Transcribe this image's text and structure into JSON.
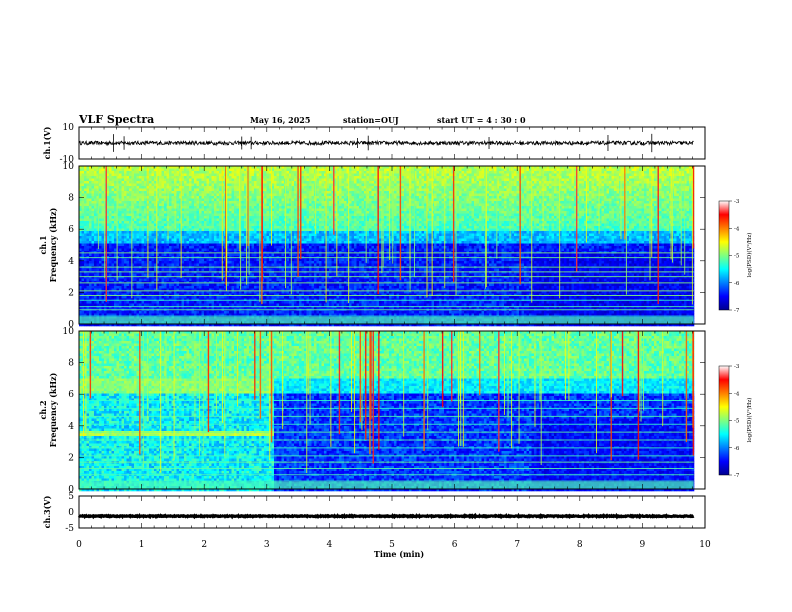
{
  "header": {
    "title": "VLF Spectra",
    "date": "May 16, 2025",
    "station": "station=OUJ",
    "start": "start  UT =   4 : 30 : 0"
  },
  "chart_data": [
    {
      "id": "ch1-waveform",
      "type": "line",
      "ylabel": "ch.1(V)",
      "ylim": [
        -10,
        10
      ],
      "y_ticks": [
        "10",
        "-10"
      ],
      "xlim": [
        0,
        10
      ],
      "x_data_end": 9.82,
      "trace_level": 0,
      "trace_noise_amplitude": 1.2,
      "spike_times": [
        0.55,
        0.72,
        2.6,
        2.75,
        4.45,
        4.62,
        6.55,
        8.45,
        9.15
      ]
    },
    {
      "id": "ch1-spectrogram",
      "type": "heatmap",
      "ylabel": "ch.1\nFrequency  (kHz)",
      "ylim": [
        0,
        10
      ],
      "y_ticks": [
        "0",
        "2",
        "4",
        "6",
        "8",
        "10"
      ],
      "xlim": [
        0,
        10
      ],
      "x_data_end": 9.82,
      "colorbar": {
        "label": "log(PSD)(V²/Hz)",
        "range": [
          -7,
          -3
        ],
        "ticks": [
          "-3",
          "-4",
          "-5",
          "-6",
          "-7"
        ]
      },
      "background_floor_khz": 6.0,
      "interference_lines_khz": [
        0.5,
        0.9,
        1.1,
        1.5,
        1.8,
        2.1,
        2.6,
        3.0,
        3.3,
        3.6,
        4.2,
        4.5
      ],
      "activity_change_min": 7.2
    },
    {
      "id": "ch2-spectrogram",
      "type": "heatmap",
      "ylabel": "ch.2\nFrequency  (kHz)",
      "ylim": [
        0,
        10
      ],
      "y_ticks": [
        "0",
        "2",
        "4",
        "6",
        "8",
        "10"
      ],
      "xlim": [
        0,
        10
      ],
      "x_data_end": 9.82,
      "colorbar": {
        "label": "log(PSD)(V²/Hz)",
        "range": [
          -7,
          -3
        ],
        "ticks": [
          "-3",
          "-4",
          "-5",
          "-6",
          "-7"
        ]
      },
      "noise_band_khz": [
        [
          6.3,
          7.0
        ],
        [
          3.4,
          3.8
        ]
      ],
      "noise_band_end_min": 3.1,
      "interference_lines_khz": [
        0.5,
        0.9,
        1.3,
        1.7,
        2.1,
        2.6,
        3.1,
        3.6,
        4.1,
        4.6,
        5.1,
        5.6
      ],
      "activity_change_min": 7.2
    },
    {
      "id": "ch3-waveform",
      "type": "line",
      "ylabel": "ch.3(V)",
      "ylim": [
        -5,
        5
      ],
      "y_ticks": [
        "5",
        "0",
        "-5"
      ],
      "xlim": [
        0,
        10
      ],
      "x_data_end": 9.82,
      "trace_level": -1.3,
      "trace_noise_amplitude": 0.15
    }
  ],
  "x_axis": {
    "label": "Time  (min)",
    "ticks": [
      "0",
      "1",
      "2",
      "3",
      "4",
      "5",
      "6",
      "7",
      "8",
      "9",
      "10"
    ]
  }
}
